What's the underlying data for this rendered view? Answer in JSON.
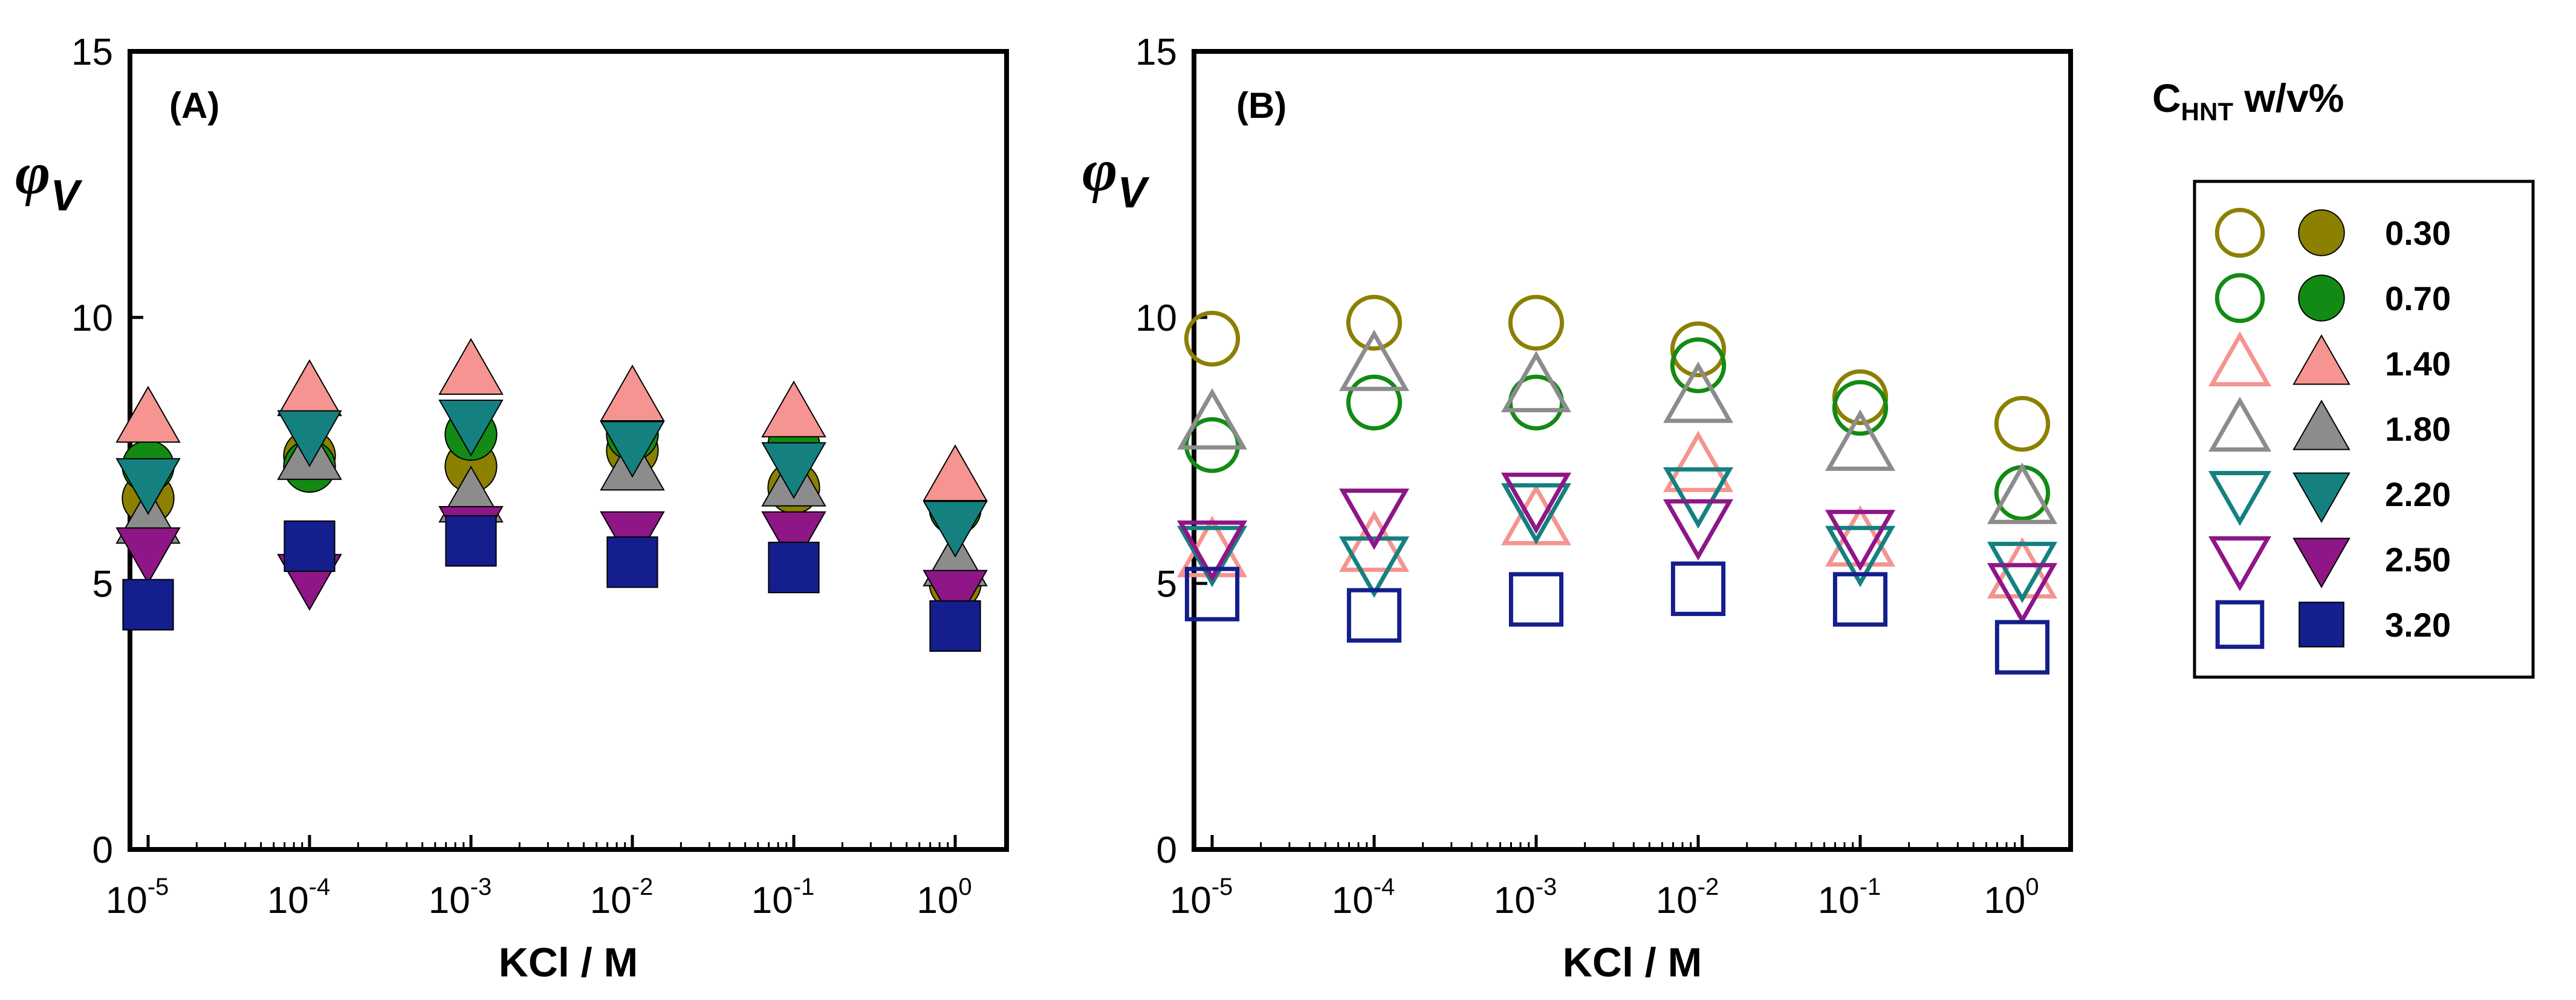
{
  "chart_data": [
    {
      "type": "scatter",
      "panel_label": "(A)",
      "ylabel_symbol": "φ",
      "ylabel_subscript": "V",
      "xlabel": "KCl / M",
      "xscale": "log",
      "xlim_exponents": [
        -5,
        0
      ],
      "ylim": [
        0,
        15
      ],
      "y_ticks": [
        0,
        5,
        10,
        15
      ],
      "x_tick_base": "10",
      "x_tick_exponents": [
        "-5",
        "-4",
        "-3",
        "-2",
        "-1",
        "0"
      ],
      "marker_fill": "filled",
      "series": [
        {
          "name": "0.30",
          "exponents": [
            -5,
            -4,
            -3,
            -2,
            -1,
            0
          ],
          "values": [
            6.6,
            7.4,
            7.2,
            7.5,
            6.8,
            5.0
          ]
        },
        {
          "name": "0.70",
          "exponents": [
            -5,
            -4,
            -3,
            -2,
            -1,
            0
          ],
          "values": [
            7.2,
            7.2,
            7.8,
            7.8,
            7.6,
            6.4
          ]
        },
        {
          "name": "1.40",
          "exponents": [
            -5,
            -4,
            -3,
            -2,
            -1,
            0
          ],
          "values": [
            8.1,
            8.6,
            9.0,
            8.5,
            8.2,
            7.0
          ]
        },
        {
          "name": "1.80",
          "exponents": [
            -5,
            -4,
            -3,
            -2,
            -1,
            0
          ],
          "values": [
            6.2,
            7.4,
            6.6,
            7.2,
            6.9,
            5.4
          ]
        },
        {
          "name": "2.20",
          "exponents": [
            -5,
            -4,
            -3,
            -2,
            -1,
            0
          ],
          "values": [
            6.9,
            7.8,
            8.0,
            7.6,
            7.2,
            6.1
          ]
        },
        {
          "name": "2.50",
          "exponents": [
            -5,
            -4,
            -3,
            -2,
            -1,
            0
          ],
          "values": [
            5.6,
            5.1,
            6.0,
            5.9,
            5.9,
            4.8
          ]
        },
        {
          "name": "3.20",
          "exponents": [
            -5,
            -4,
            -3,
            -2,
            -1,
            0
          ],
          "values": [
            4.6,
            5.7,
            5.8,
            5.4,
            5.3,
            4.2
          ]
        }
      ]
    },
    {
      "type": "scatter",
      "panel_label": "(B)",
      "ylabel_symbol": "φ",
      "ylabel_subscript": "V",
      "xlabel": "KCl / M",
      "xscale": "log",
      "xlim_exponents": [
        -5,
        0
      ],
      "ylim": [
        0,
        15
      ],
      "y_ticks": [
        0,
        5,
        10,
        15
      ],
      "x_tick_base": "10",
      "x_tick_exponents": [
        "-5",
        "-4",
        "-3",
        "-2",
        "-1",
        "0"
      ],
      "marker_fill": "open",
      "series": [
        {
          "name": "0.30",
          "exponents": [
            -5,
            -4,
            -3,
            -2,
            -1,
            0
          ],
          "values": [
            9.6,
            9.9,
            9.9,
            9.4,
            8.5,
            8.0
          ]
        },
        {
          "name": "0.70",
          "exponents": [
            -5,
            -4,
            -3,
            -2,
            -1,
            0
          ],
          "values": [
            7.6,
            8.4,
            8.4,
            9.1,
            8.3,
            6.7
          ]
        },
        {
          "name": "1.40",
          "exponents": [
            -5,
            -4,
            -3,
            -2,
            -1,
            0
          ],
          "values": [
            5.6,
            5.7,
            6.2,
            7.2,
            5.8,
            5.2
          ]
        },
        {
          "name": "1.80",
          "exponents": [
            -5,
            -4,
            -3,
            -2,
            -1,
            0
          ],
          "values": [
            8.0,
            9.1,
            8.7,
            8.5,
            7.6,
            6.6
          ]
        },
        {
          "name": "2.20",
          "exponents": [
            -5,
            -4,
            -3,
            -2,
            -1,
            0
          ],
          "values": [
            5.6,
            5.4,
            6.4,
            6.7,
            5.6,
            5.3
          ]
        },
        {
          "name": "2.50",
          "exponents": [
            -5,
            -4,
            -3,
            -2,
            -1,
            0
          ],
          "values": [
            5.7,
            6.3,
            6.6,
            6.1,
            5.9,
            4.9
          ]
        },
        {
          "name": "3.20",
          "exponents": [
            -5,
            -4,
            -3,
            -2,
            -1,
            0
          ],
          "values": [
            4.8,
            4.4,
            4.7,
            4.9,
            4.7,
            3.8
          ]
        }
      ]
    }
  ],
  "legend": {
    "title_main": "C",
    "title_sub": "HNT",
    "title_rest": " w/v%",
    "entries": [
      {
        "label": "0.30",
        "marker": "circle",
        "color": "#8B8000"
      },
      {
        "label": "0.70",
        "marker": "circle",
        "color": "#138A13"
      },
      {
        "label": "1.40",
        "marker": "triangle-up",
        "color": "#F59490"
      },
      {
        "label": "1.80",
        "marker": "triangle-up",
        "color": "#8C8C8C"
      },
      {
        "label": "2.20",
        "marker": "triangle-down",
        "color": "#148080"
      },
      {
        "label": "2.50",
        "marker": "triangle-down",
        "color": "#8E1687"
      },
      {
        "label": "3.20",
        "marker": "square",
        "color": "#141E8C"
      }
    ]
  }
}
